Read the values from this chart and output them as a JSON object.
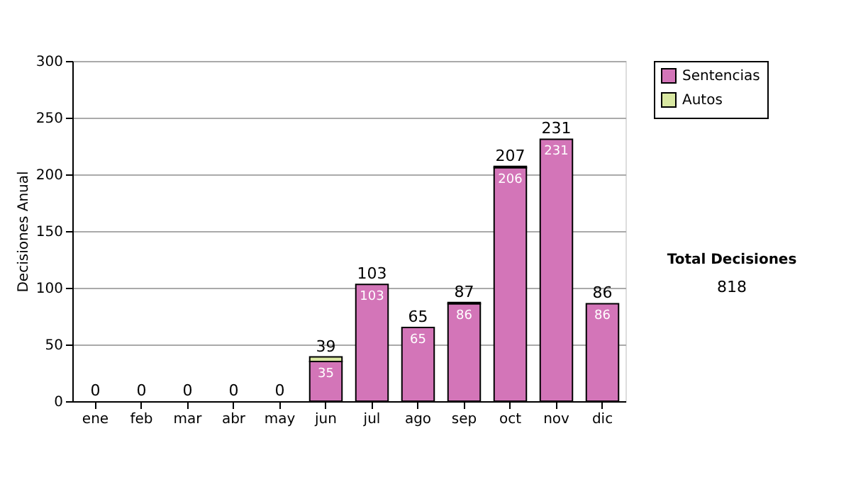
{
  "chart_data": {
    "type": "bar",
    "stacked": true,
    "ylabel": "Decisiones Anual",
    "categories": [
      "ene",
      "feb",
      "mar",
      "abr",
      "may",
      "jun",
      "jul",
      "ago",
      "sep",
      "oct",
      "nov",
      "dic"
    ],
    "series": [
      {
        "name": "Sentencias",
        "color": "#d375b8",
        "values": [
          0,
          0,
          0,
          0,
          0,
          35,
          103,
          65,
          86,
          206,
          231,
          86
        ],
        "value_labels": [
          null,
          null,
          null,
          null,
          null,
          "35",
          "103",
          "65",
          "86",
          "206",
          "231",
          "86"
        ]
      },
      {
        "name": "Autos",
        "color": "#d9e8a2",
        "values": [
          0,
          0,
          0,
          0,
          0,
          4,
          0,
          0,
          1,
          1,
          0,
          0
        ]
      }
    ],
    "totals": [
      "0",
      "0",
      "0",
      "0",
      "0",
      "39",
      "103",
      "65",
      "87",
      "207",
      "231",
      "86"
    ],
    "ylim": [
      0,
      300
    ],
    "yticks": [
      0,
      50,
      100,
      150,
      200,
      250,
      300
    ],
    "grid": "y",
    "legend": "right",
    "annotations": [
      "Total Decisiones",
      "818"
    ]
  }
}
